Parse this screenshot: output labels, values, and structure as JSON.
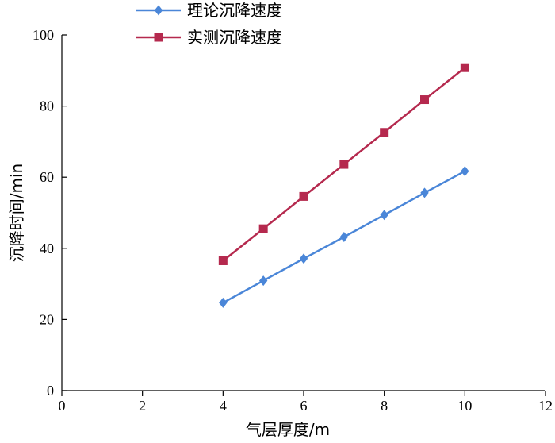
{
  "chart_data": {
    "type": "line",
    "xlabel": "气层厚度/m",
    "ylabel": "沉降时间/min",
    "xlim": [
      0,
      12
    ],
    "ylim": [
      0,
      100
    ],
    "xticks": [
      "0",
      "2",
      "4",
      "6",
      "8",
      "10",
      "12"
    ],
    "yticks": [
      "0",
      "20",
      "40",
      "60",
      "80",
      "100"
    ],
    "grid": false,
    "legend_position": "top-left",
    "x": [
      4,
      5,
      6,
      7,
      8,
      9,
      10
    ],
    "series": [
      {
        "name": "理论沉降速度",
        "color": "#4a86d8",
        "marker": "diamond",
        "values": [
          24.7,
          30.9,
          37.1,
          43.2,
          49.4,
          55.6,
          61.7
        ]
      },
      {
        "name": "实测沉降速度",
        "color": "#b5294e",
        "marker": "square",
        "values": [
          36.5,
          45.5,
          54.6,
          63.6,
          72.6,
          81.8,
          90.8
        ]
      }
    ]
  }
}
